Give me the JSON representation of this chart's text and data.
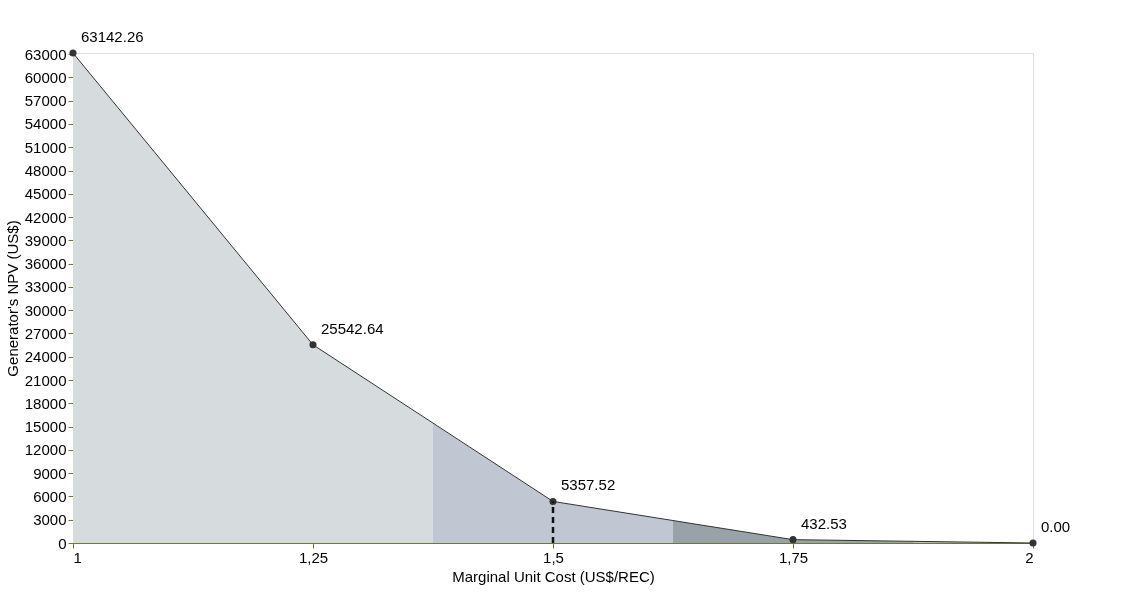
{
  "chart_data": {
    "type": "area",
    "xlabel": "Marginal Unit Cost (US$/REC)",
    "ylabel": "Generator's NPV (US$)",
    "xlim": [
      1,
      2
    ],
    "xticks": [
      1,
      {
        "value": 1.25,
        "label": "1,25"
      },
      {
        "value": 1.5,
        "label": "1,5"
      },
      {
        "value": 1.75,
        "label": "1,75"
      },
      2
    ],
    "ylim": [
      0,
      63142.26
    ],
    "yticks": [
      0,
      3000,
      6000,
      9000,
      12000,
      15000,
      18000,
      21000,
      24000,
      27000,
      30000,
      33000,
      36000,
      39000,
      42000,
      45000,
      48000,
      51000,
      54000,
      57000,
      60000,
      63000
    ],
    "grid": false,
    "series": [
      {
        "color": "#d6dbde",
        "x": [
          1,
          1.25,
          1.375
        ],
        "values": [
          63142.26,
          25542.64,
          15400
        ]
      },
      {
        "color": "#c0c7d2",
        "x": [
          1.375,
          1.5,
          1.625
        ],
        "values": [
          15400,
          5357.52,
          2900
        ]
      },
      {
        "color": "#98a2a8",
        "x": [
          1.625,
          1.75,
          1.875
        ],
        "values": [
          2900,
          432.53,
          200
        ]
      },
      {
        "color": "#b4bcc4",
        "x": [
          1.875,
          2
        ],
        "values": [
          200,
          0
        ]
      },
      {
        "type": "line",
        "color": "#333333",
        "marker": "circle",
        "x": [
          1,
          1.25,
          1.5,
          1.75,
          2
        ],
        "values": [
          63142.26,
          25542.64,
          5357.52,
          432.53,
          0
        ],
        "value_labels": [
          "63142.26",
          "25542.64",
          "5357.52",
          "432.53",
          "0.00"
        ]
      }
    ],
    "ref_lines": [
      {
        "axis": "x",
        "value": 1.5,
        "color": "#111111",
        "line_style": "dashed"
      }
    ]
  }
}
